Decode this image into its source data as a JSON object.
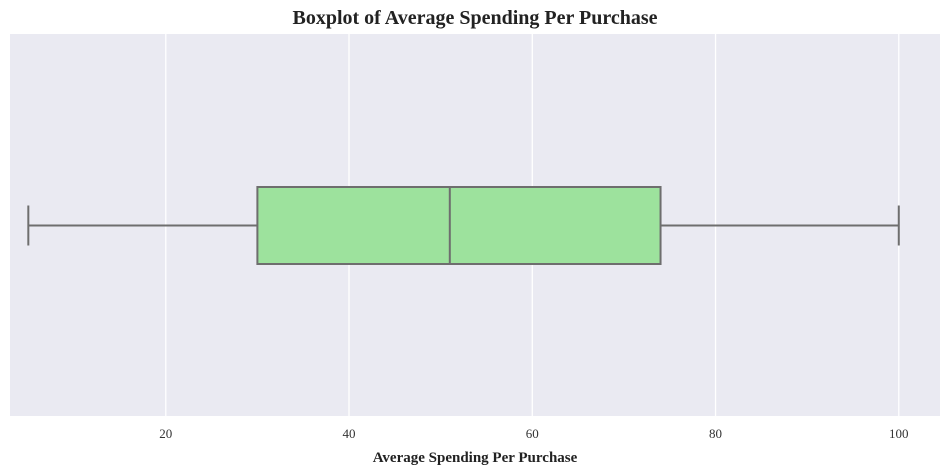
{
  "chart_data": {
    "type": "boxplot",
    "title": "Boxplot of Average Spending Per Purchase",
    "xlabel": "Average Spending Per Purchase",
    "ylabel": "",
    "xlim": [
      3,
      104.5
    ],
    "xticks": [
      20,
      40,
      60,
      80,
      100
    ],
    "orientation": "horizontal",
    "grid": true,
    "box": {
      "whisker_low": 5,
      "q1": 30,
      "median": 51,
      "q3": 74,
      "whisker_high": 100
    },
    "colors": {
      "plot_background": "#eaeaf2",
      "box_fill": "#9de29d",
      "box_line": "#6e6e6e",
      "grid": "#ffffff"
    }
  }
}
